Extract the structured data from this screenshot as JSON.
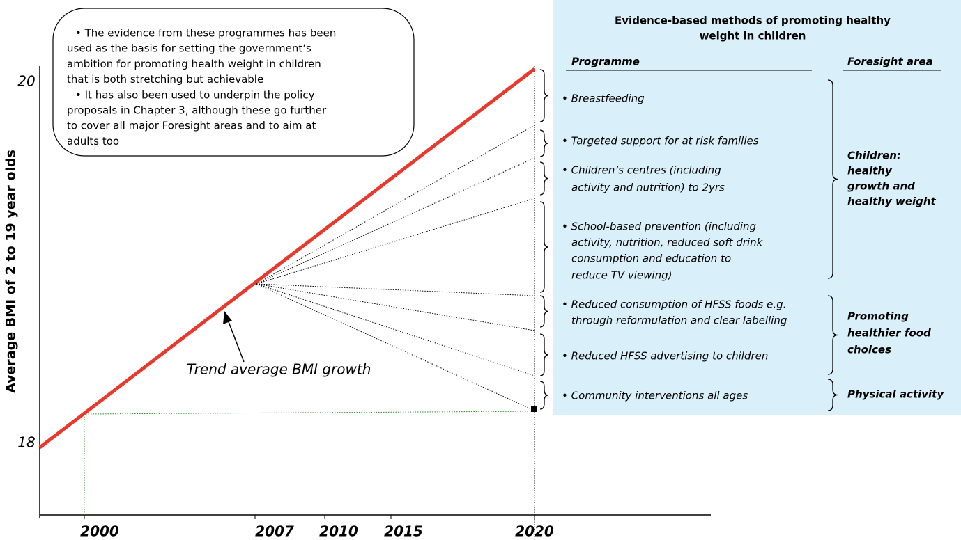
{
  "axis": {
    "y_label": "Average BMI of 2 to 19 year olds",
    "y_ticks": [
      "20",
      "18"
    ],
    "x_ticks": [
      "2000",
      "2007",
      "2010",
      "2015",
      "2020"
    ]
  },
  "callout": {
    "lines": [
      "• The evidence from these programmes has been",
      "used as the basis for setting the government’s",
      "ambition for promoting health weight in children",
      "that is both stretching but achievable",
      "• It has also been used to underpin the policy",
      "proposals in Chapter 3, although these go further",
      "to cover all major Foresight areas and to aim at",
      "adults too"
    ]
  },
  "annotation": "Trend average BMI growth",
  "panel": {
    "title": [
      "Evidence-based methods of promoting healthy",
      "weight in children"
    ],
    "header_programme": "Programme",
    "header_area": "Foresight area",
    "programmes": [
      {
        "lines": [
          "• Breastfeeding"
        ]
      },
      {
        "lines": [
          "• Targeted support for at risk families"
        ]
      },
      {
        "lines": [
          "• Children’s centres (including",
          "activity and nutrition) to 2yrs"
        ]
      },
      {
        "lines": [
          "• School-based prevention (including",
          "activity, nutrition, reduced soft drink",
          "consumption and education to",
          "reduce TV viewing)"
        ]
      },
      {
        "lines": [
          "• Reduced consumption of HFSS foods e.g.",
          "through reformulation and clear labelling"
        ]
      },
      {
        "lines": [
          "• Reduced HFSS advertising to children"
        ]
      },
      {
        "lines": [
          "• Community interventions all ages"
        ]
      }
    ],
    "areas": [
      {
        "lines": [
          "Children:",
          "healthy",
          "growth and",
          "healthy weight"
        ]
      },
      {
        "lines": [
          "Promoting",
          "healthier food",
          "choices"
        ]
      },
      {
        "lines": [
          "Physical activity"
        ]
      }
    ]
  }
}
